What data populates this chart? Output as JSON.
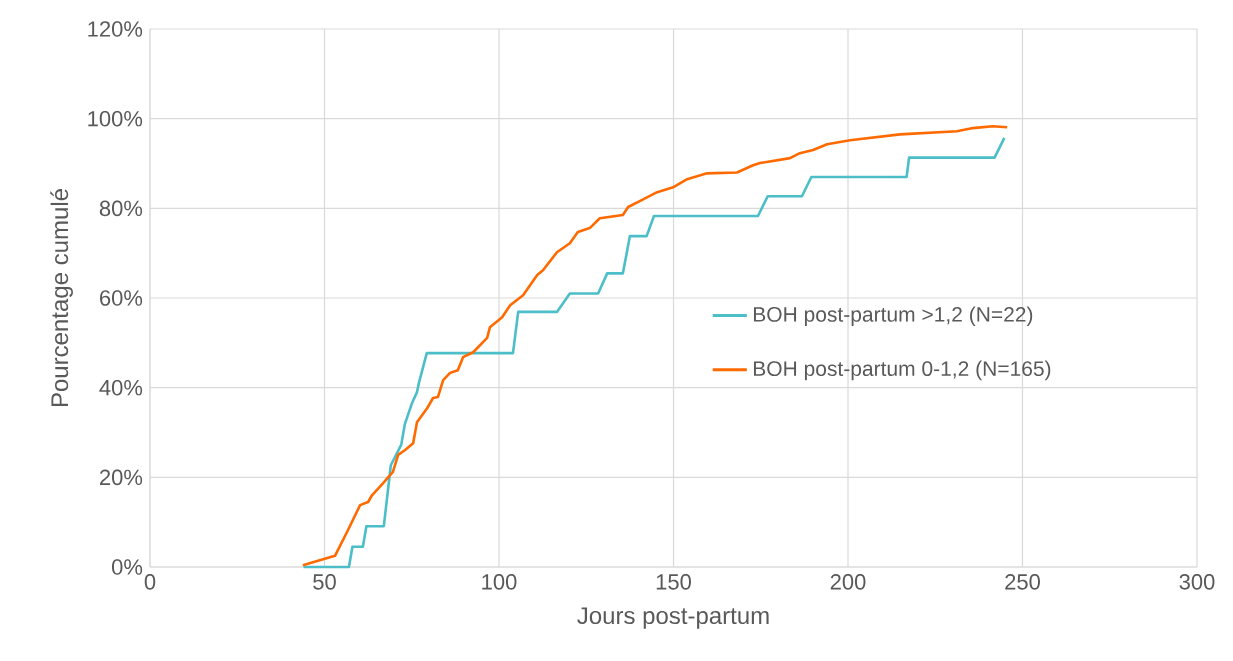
{
  "chart_data": {
    "type": "line",
    "xlabel": "Jours post-partum",
    "ylabel": "Pourcentage cumulé",
    "xlim": [
      0,
      300
    ],
    "xticks": [
      0,
      50,
      100,
      150,
      200,
      250,
      300
    ],
    "ylim": [
      0,
      120
    ],
    "yticks": [
      {
        "value": 0,
        "label": "0%"
      },
      {
        "value": 20,
        "label": "20%"
      },
      {
        "value": 40,
        "label": "40%"
      },
      {
        "value": 60,
        "label": "60%"
      },
      {
        "value": 80,
        "label": "80%"
      },
      {
        "value": 100,
        "label": "100%"
      },
      {
        "value": 120,
        "label": "120%"
      }
    ],
    "grid": true,
    "legend": "right",
    "marker": "none",
    "line_style": "solid",
    "series": [
      {
        "name": "BOH post-partum >1,2 (N=22)",
        "color": "#4bbec8",
        "x": [
          44,
          57,
          58,
          61,
          62,
          67,
          69,
          72,
          73,
          75,
          76.5,
          77,
          79.3,
          104,
          105.5,
          116.6,
          120.3,
          128.4,
          131,
          135.5,
          137.5,
          142.3,
          144.4,
          174.2,
          177,
          186.8,
          189.5,
          216.8,
          217.5,
          242,
          244.8
        ],
        "values": [
          0,
          0,
          4.5,
          4.5,
          9.1,
          9.1,
          22.7,
          27.3,
          31.8,
          36.4,
          39,
          40.9,
          47.7,
          47.7,
          56.9,
          56.9,
          61,
          61,
          65.5,
          65.5,
          73.8,
          73.8,
          78.3,
          78.3,
          82.7,
          82.7,
          87,
          87,
          91.3,
          91.3,
          95.7
        ]
      },
      {
        "name": "BOH post-partum 0-1,2 (N=165)",
        "color": "#ff6a00",
        "x": [
          43.8,
          53,
          56.7,
          60.2,
          62.5,
          63.6,
          66.8,
          69.6,
          71.1,
          73.1,
          75.4,
          76.5,
          79.4,
          81.1,
          82.5,
          84,
          86,
          88.2,
          89.7,
          92.6,
          96.6,
          97.4,
          100.9,
          103.2,
          106.9,
          110.9,
          112.6,
          116.6,
          120.3,
          122.6,
          126,
          128.9,
          135.5,
          137,
          141.3,
          145.3,
          149.9,
          153.9,
          159.6,
          168.2,
          172.8,
          174.8,
          183.4,
          186.2,
          190,
          194,
          197.7,
          200.6,
          214.9,
          231.2,
          235.8,
          241.5,
          245.6
        ],
        "values": [
          0.4,
          2.5,
          8.2,
          13.8,
          14.5,
          16,
          18.7,
          21.2,
          25,
          26.1,
          27.6,
          32.3,
          35.4,
          37.7,
          37.9,
          41.7,
          43.3,
          43.9,
          46.8,
          47.9,
          51.1,
          53.5,
          55.7,
          58.4,
          60.6,
          65.1,
          66.2,
          70.2,
          72.2,
          74.7,
          75.6,
          77.8,
          78.5,
          80.3,
          82,
          83.6,
          84.7,
          86.5,
          87.8,
          88,
          89.6,
          90.1,
          91.2,
          92.3,
          93,
          94.3,
          94.8,
          95.2,
          96.5,
          97.2,
          97.9,
          98.3,
          98.1
        ]
      }
    ]
  }
}
